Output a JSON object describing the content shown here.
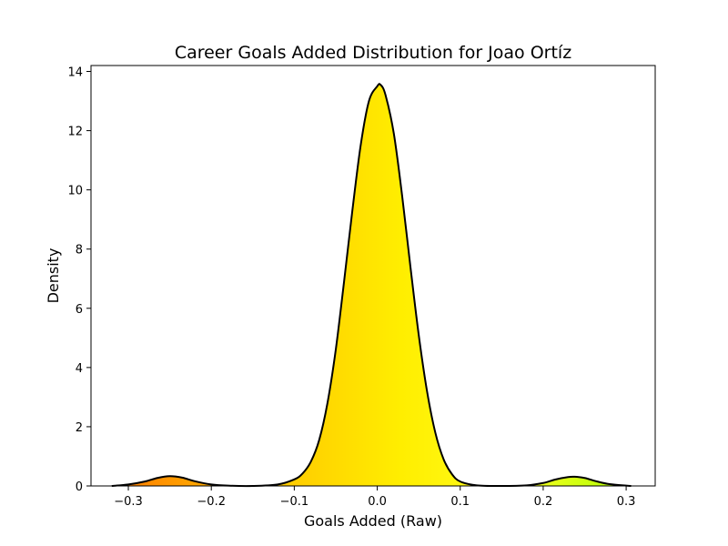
{
  "chart_data": {
    "type": "area",
    "title": "Career Goals Added Distribution for Joao Ortíz",
    "xlabel": "Goals Added (Raw)",
    "ylabel": "Density",
    "xlim": [
      -0.345,
      0.335
    ],
    "ylim": [
      0,
      14.2
    ],
    "x_ticks": [
      -0.3,
      -0.2,
      -0.1,
      0.0,
      0.1,
      0.2,
      0.3
    ],
    "x_tick_labels": [
      "−0.3",
      "−0.2",
      "−0.1",
      "0.0",
      "0.1",
      "0.2",
      "0.3"
    ],
    "y_ticks": [
      0,
      2,
      4,
      6,
      8,
      10,
      12,
      14
    ],
    "y_tick_labels": [
      "0",
      "2",
      "4",
      "6",
      "8",
      "10",
      "12",
      "14"
    ],
    "grid": false,
    "legend": "none",
    "fill_colormap": [
      "#ff7f00",
      "#ffd400",
      "#ffff00",
      "#a8ff00"
    ],
    "line_color": "#000000",
    "series": [
      {
        "x": [
          -0.32,
          -0.3,
          -0.28,
          -0.265,
          -0.25,
          -0.235,
          -0.22,
          -0.2,
          -0.18,
          -0.15,
          -0.12,
          -0.1,
          -0.09,
          -0.08,
          -0.07,
          -0.06,
          -0.05,
          -0.04,
          -0.03,
          -0.02,
          -0.01,
          0.0,
          0.004,
          0.01,
          0.02,
          0.03,
          0.04,
          0.05,
          0.06,
          0.07,
          0.08,
          0.09,
          0.1,
          0.12,
          0.15,
          0.18,
          0.2,
          0.215,
          0.23,
          0.238,
          0.25,
          0.265,
          0.28,
          0.3,
          0.306
        ],
        "y": [
          0.0,
          0.05,
          0.15,
          0.27,
          0.33,
          0.28,
          0.16,
          0.05,
          0.01,
          0.0,
          0.05,
          0.22,
          0.42,
          0.82,
          1.55,
          2.8,
          4.6,
          6.9,
          9.3,
          11.5,
          13.0,
          13.5,
          13.55,
          13.2,
          11.9,
          9.8,
          7.4,
          5.1,
          3.2,
          1.8,
          0.9,
          0.4,
          0.15,
          0.02,
          0.0,
          0.02,
          0.1,
          0.22,
          0.3,
          0.31,
          0.27,
          0.15,
          0.06,
          0.01,
          0.0
        ]
      }
    ]
  }
}
